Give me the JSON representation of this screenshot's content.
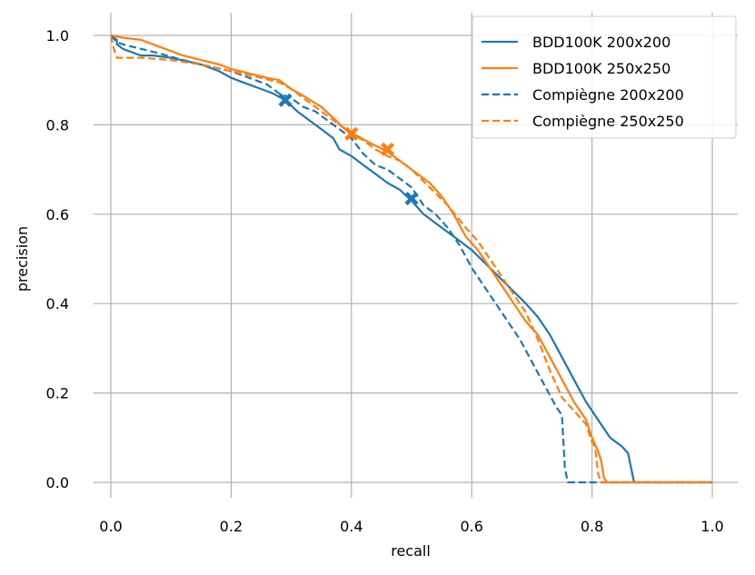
{
  "chart_data": {
    "type": "line",
    "title": "",
    "xlabel": "recall",
    "ylabel": "precision",
    "xlim": [
      0.0,
      1.0
    ],
    "ylim": [
      0.0,
      1.0
    ],
    "xticks": [
      "0.0",
      "0.2",
      "0.4",
      "0.6",
      "0.8",
      "1.0"
    ],
    "yticks": [
      "0.0",
      "0.2",
      "0.4",
      "0.6",
      "0.8",
      "1.0"
    ],
    "grid": true,
    "legend_position": "top-right",
    "series": [
      {
        "name": "BDD100K 200x200",
        "color": "#1f77b4",
        "dash": "solid",
        "x": [
          0.0,
          0.01,
          0.01,
          0.02,
          0.05,
          0.07,
          0.1,
          0.15,
          0.18,
          0.2,
          0.22,
          0.25,
          0.27,
          0.29,
          0.31,
          0.33,
          0.35,
          0.37,
          0.38,
          0.4,
          0.42,
          0.44,
          0.46,
          0.48,
          0.5,
          0.52,
          0.55,
          0.58,
          0.6,
          0.63,
          0.66,
          0.69,
          0.71,
          0.73,
          0.75,
          0.77,
          0.79,
          0.81,
          0.83,
          0.85,
          0.86,
          0.87,
          0.88,
          1.0
        ],
        "y": [
          1.0,
          0.99,
          0.98,
          0.97,
          0.955,
          0.955,
          0.95,
          0.935,
          0.92,
          0.905,
          0.895,
          0.88,
          0.87,
          0.855,
          0.83,
          0.81,
          0.79,
          0.77,
          0.745,
          0.73,
          0.71,
          0.69,
          0.67,
          0.655,
          0.63,
          0.6,
          0.57,
          0.54,
          0.52,
          0.48,
          0.44,
          0.4,
          0.37,
          0.33,
          0.28,
          0.23,
          0.18,
          0.14,
          0.1,
          0.08,
          0.065,
          0.0,
          0.0,
          0.0
        ]
      },
      {
        "name": "BDD100K 250x250",
        "color": "#ff7f0e",
        "dash": "solid",
        "x": [
          0.0,
          0.02,
          0.05,
          0.08,
          0.1,
          0.12,
          0.15,
          0.18,
          0.2,
          0.23,
          0.26,
          0.28,
          0.3,
          0.32,
          0.35,
          0.37,
          0.39,
          0.41,
          0.43,
          0.46,
          0.48,
          0.5,
          0.53,
          0.55,
          0.57,
          0.59,
          0.61,
          0.63,
          0.65,
          0.67,
          0.69,
          0.71,
          0.73,
          0.75,
          0.77,
          0.79,
          0.8,
          0.81,
          0.815,
          0.82,
          0.825,
          0.83,
          1.0
        ],
        "y": [
          1.0,
          0.995,
          0.99,
          0.975,
          0.965,
          0.955,
          0.945,
          0.935,
          0.925,
          0.915,
          0.905,
          0.9,
          0.88,
          0.865,
          0.84,
          0.815,
          0.79,
          0.775,
          0.76,
          0.74,
          0.72,
          0.7,
          0.67,
          0.64,
          0.6,
          0.55,
          0.52,
          0.48,
          0.44,
          0.4,
          0.36,
          0.33,
          0.28,
          0.23,
          0.18,
          0.14,
          0.1,
          0.07,
          0.05,
          0.01,
          0.0,
          0.0,
          0.0
        ]
      },
      {
        "name": "Compiègne 200x200",
        "color": "#1f77b4",
        "dash": "dashed",
        "x": [
          0.0,
          0.01,
          0.02,
          0.05,
          0.08,
          0.12,
          0.15,
          0.2,
          0.23,
          0.26,
          0.28,
          0.3,
          0.32,
          0.34,
          0.36,
          0.38,
          0.4,
          0.42,
          0.44,
          0.46,
          0.48,
          0.5,
          0.52,
          0.54,
          0.56,
          0.58,
          0.6,
          0.62,
          0.64,
          0.66,
          0.68,
          0.7,
          0.72,
          0.74,
          0.75,
          0.755,
          0.76,
          1.0
        ],
        "y": [
          1.0,
          0.985,
          0.98,
          0.97,
          0.96,
          0.945,
          0.935,
          0.92,
          0.905,
          0.89,
          0.87,
          0.86,
          0.84,
          0.83,
          0.81,
          0.79,
          0.77,
          0.735,
          0.71,
          0.7,
          0.68,
          0.66,
          0.62,
          0.6,
          0.57,
          0.53,
          0.48,
          0.44,
          0.4,
          0.36,
          0.32,
          0.27,
          0.22,
          0.17,
          0.15,
          0.03,
          0.0,
          0.0
        ]
      },
      {
        "name": "Compiègne 250x250",
        "color": "#ff7f0e",
        "dash": "dashed",
        "x": [
          0.0,
          0.005,
          0.01,
          0.05,
          0.1,
          0.15,
          0.2,
          0.25,
          0.28,
          0.3,
          0.32,
          0.34,
          0.36,
          0.38,
          0.4,
          0.42,
          0.44,
          0.46,
          0.48,
          0.5,
          0.53,
          0.56,
          0.59,
          0.61,
          0.63,
          0.65,
          0.67,
          0.69,
          0.71,
          0.73,
          0.75,
          0.77,
          0.79,
          0.8,
          0.805,
          0.81,
          0.815,
          1.0
        ],
        "y": [
          1.0,
          0.97,
          0.95,
          0.95,
          0.945,
          0.935,
          0.92,
          0.905,
          0.895,
          0.88,
          0.86,
          0.84,
          0.82,
          0.8,
          0.78,
          0.765,
          0.745,
          0.73,
          0.72,
          0.7,
          0.66,
          0.62,
          0.57,
          0.54,
          0.5,
          0.46,
          0.42,
          0.38,
          0.32,
          0.25,
          0.19,
          0.16,
          0.13,
          0.09,
          0.08,
          0.02,
          0.0,
          0.0
        ]
      }
    ],
    "markers": [
      {
        "series": "BDD100K 200x200",
        "x": 0.29,
        "y": 0.855,
        "shape": "X",
        "color": "#1f77b4"
      },
      {
        "series": "BDD100K 200x200",
        "x": 0.5,
        "y": 0.635,
        "shape": "X",
        "color": "#1f77b4"
      },
      {
        "series": "BDD100K 250x250",
        "x": 0.4,
        "y": 0.78,
        "shape": "X",
        "color": "#ff7f0e"
      },
      {
        "series": "BDD100K 250x250",
        "x": 0.46,
        "y": 0.745,
        "shape": "X",
        "color": "#ff7f0e"
      }
    ]
  }
}
